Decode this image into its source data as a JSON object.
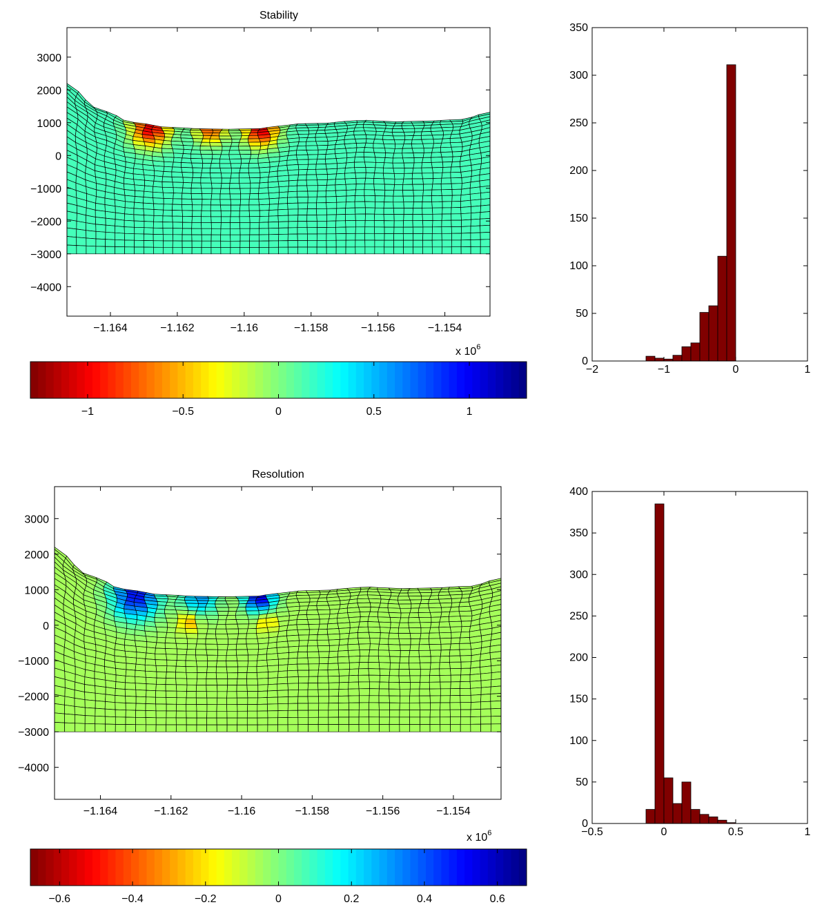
{
  "figure": {
    "colors": {
      "mesh_line": "#000000",
      "bar_fill": "#800000",
      "bar_edge": "#000000",
      "axes": "#000000",
      "background": "#ffffff"
    },
    "colormap": "jet",
    "x_multiplier_label": "x 10",
    "x_multiplier_exponent": "6"
  },
  "chart_data": [
    {
      "id": "stability-mesh",
      "type": "heatmap",
      "title": "Stability",
      "xlabel": "",
      "ylabel": "",
      "xlim": [
        -1.1653,
        -1.15265
      ],
      "ylim": [
        -4900,
        3900
      ],
      "x_scale_exponent": 6,
      "xticks": [
        -1.164,
        -1.162,
        -1.16,
        -1.158,
        -1.156,
        -1.154
      ],
      "xtick_labels": [
        "−1.164",
        "−1.162",
        "−1.16",
        "−1.158",
        "−1.156",
        "−1.154"
      ],
      "yticks": [
        3000,
        2000,
        1000,
        0,
        -1000,
        -2000,
        -3000,
        -4000
      ],
      "ytick_labels": [
        "3000",
        "2000",
        "1000",
        "0",
        "−1000",
        "−2000",
        "−3000",
        "−4000"
      ],
      "mesh_bottom": -3000,
      "surface": [
        [
          -1.1653,
          2200
        ],
        [
          -1.1645,
          1500
        ],
        [
          -1.1635,
          1050
        ],
        [
          -1.1625,
          880
        ],
        [
          -1.1615,
          820
        ],
        [
          -1.1605,
          800
        ],
        [
          -1.1595,
          820
        ],
        [
          -1.1585,
          960
        ],
        [
          -1.1575,
          990
        ],
        [
          -1.1565,
          1080
        ],
        [
          -1.1555,
          1030
        ],
        [
          -1.1545,
          1050
        ],
        [
          -1.1535,
          1100
        ],
        [
          -1.15265,
          1320
        ]
      ],
      "default_value": 0.15,
      "anomalies": [
        {
          "x": -1.1628,
          "y": 820,
          "amplitude": -1.2,
          "radius": 550
        },
        {
          "x": -1.161,
          "y": 780,
          "amplitude": -0.9,
          "radius": 450
        },
        {
          "x": -1.1595,
          "y": 760,
          "amplitude": -1.2,
          "radius": 500
        }
      ],
      "colorbar": {
        "clim": [
          -1.3,
          1.3
        ],
        "reversed": true,
        "ticks": [
          -1,
          -0.5,
          0,
          0.5,
          1
        ],
        "tick_labels": [
          "−1",
          "−0.5",
          "0",
          "0.5",
          "1"
        ]
      }
    },
    {
      "id": "stability-histogram",
      "type": "bar",
      "title": "",
      "xlabel": "",
      "ylabel": "",
      "xlim": [
        -2,
        1
      ],
      "ylim": [
        0,
        350
      ],
      "xticks": [
        -2,
        -1,
        0,
        1
      ],
      "xtick_labels": [
        "−2",
        "−1",
        "0",
        "1"
      ],
      "yticks": [
        0,
        50,
        100,
        150,
        200,
        250,
        300,
        350
      ],
      "ytick_labels": [
        "0",
        "50",
        "100",
        "150",
        "200",
        "250",
        "300",
        "350"
      ],
      "bin_edges": [
        -1.25,
        -1.125,
        -1.0,
        -0.875,
        -0.75,
        -0.625,
        -0.5,
        -0.375,
        -0.25,
        -0.125,
        0.0,
        0.125
      ],
      "values": [
        5,
        3,
        2,
        6,
        15,
        19,
        51,
        58,
        110,
        311,
        0
      ]
    },
    {
      "id": "resolution-mesh",
      "type": "heatmap",
      "title": "Resolution",
      "xlabel": "",
      "ylabel": "",
      "xlim": [
        -1.1653,
        -1.15265
      ],
      "ylim": [
        -4900,
        3900
      ],
      "x_scale_exponent": 6,
      "xticks": [
        -1.164,
        -1.162,
        -1.16,
        -1.158,
        -1.156,
        -1.154
      ],
      "xtick_labels": [
        "−1.164",
        "−1.162",
        "−1.16",
        "−1.158",
        "−1.156",
        "−1.154"
      ],
      "yticks": [
        3000,
        2000,
        1000,
        0,
        -1000,
        -2000,
        -3000,
        -4000
      ],
      "ytick_labels": [
        "3000",
        "2000",
        "1000",
        "0",
        "−1000",
        "−2000",
        "−3000",
        "−4000"
      ],
      "mesh_bottom": -3000,
      "surface": [
        [
          -1.1653,
          2200
        ],
        [
          -1.1645,
          1500
        ],
        [
          -1.1635,
          1050
        ],
        [
          -1.1625,
          880
        ],
        [
          -1.1615,
          820
        ],
        [
          -1.1605,
          800
        ],
        [
          -1.1595,
          820
        ],
        [
          -1.1585,
          960
        ],
        [
          -1.1575,
          990
        ],
        [
          -1.1565,
          1080
        ],
        [
          -1.1555,
          1030
        ],
        [
          -1.1545,
          1050
        ],
        [
          -1.1535,
          1100
        ],
        [
          -1.15265,
          1320
        ]
      ],
      "default_value": -0.05,
      "anomalies": [
        {
          "x": -1.163,
          "y": 820,
          "amplitude": 0.55,
          "radius": 650
        },
        {
          "x": -1.1612,
          "y": 780,
          "amplitude": 0.35,
          "radius": 500
        },
        {
          "x": -1.1595,
          "y": 780,
          "amplitude": 0.6,
          "radius": 420
        },
        {
          "x": -1.1615,
          "y": 100,
          "amplitude": -0.25,
          "radius": 280
        },
        {
          "x": -1.1593,
          "y": 100,
          "amplitude": -0.2,
          "radius": 260
        }
      ],
      "colorbar": {
        "clim": [
          -0.68,
          0.68
        ],
        "reversed": true,
        "ticks": [
          -0.6,
          -0.4,
          -0.2,
          0,
          0.2,
          0.4,
          0.6
        ],
        "tick_labels": [
          "−0.6",
          "−0.4",
          "−0.2",
          "0",
          "0.2",
          "0.4",
          "0.6"
        ]
      }
    },
    {
      "id": "resolution-histogram",
      "type": "bar",
      "title": "",
      "xlabel": "",
      "ylabel": "",
      "xlim": [
        -0.5,
        1
      ],
      "ylim": [
        0,
        400
      ],
      "xticks": [
        -0.5,
        0,
        0.5,
        1
      ],
      "xtick_labels": [
        "−0.5",
        "0",
        "0.5",
        "1"
      ],
      "yticks": [
        0,
        50,
        100,
        150,
        200,
        250,
        300,
        350,
        400
      ],
      "ytick_labels": [
        "0",
        "50",
        "100",
        "150",
        "200",
        "250",
        "300",
        "350",
        "400"
      ],
      "bin_edges": [
        -0.125,
        -0.0625,
        0.0,
        0.0625,
        0.125,
        0.1875,
        0.25,
        0.3125,
        0.375,
        0.4375,
        0.5,
        0.5625,
        0.625,
        0.6875
      ],
      "values": [
        17,
        385,
        55,
        24,
        50,
        17,
        11,
        8,
        4,
        1,
        0,
        0,
        0
      ]
    }
  ]
}
